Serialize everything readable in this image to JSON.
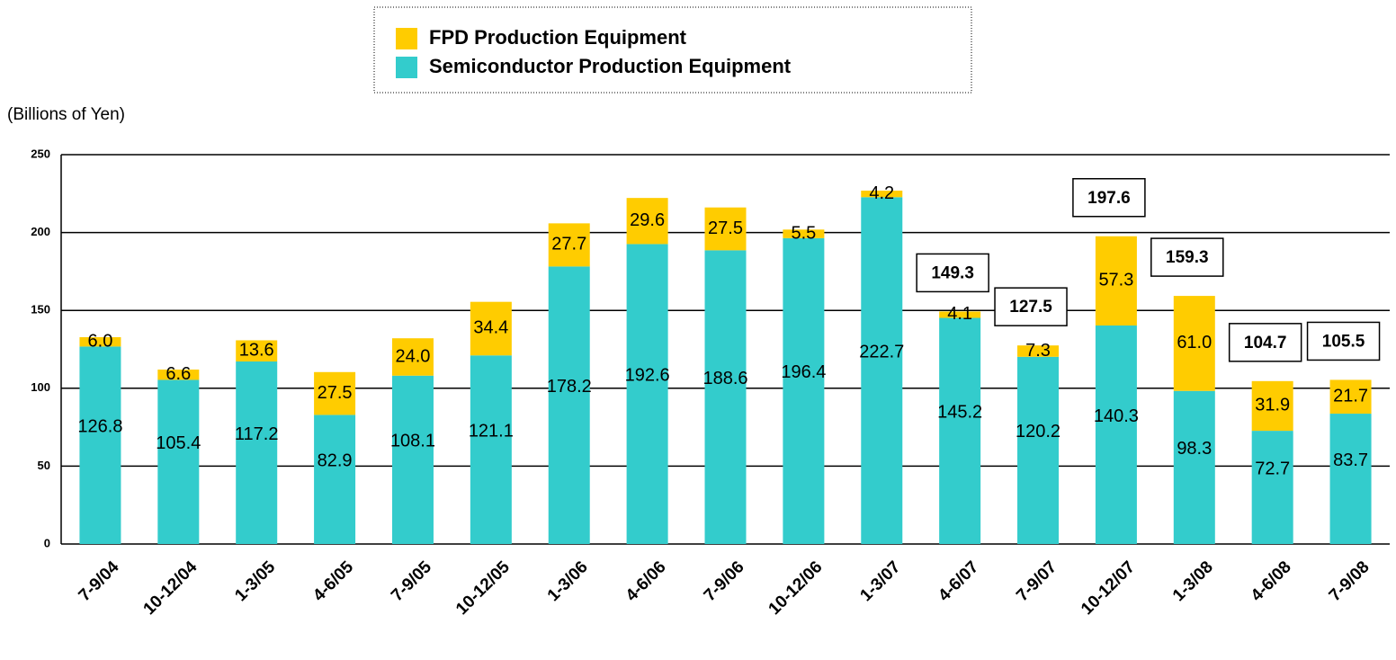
{
  "chart_data": {
    "type": "stacked_bar",
    "ylabel": "(Billions of Yen)",
    "categories": [
      "7-9/04",
      "10-12/04",
      "1-3/05",
      "4-6/05",
      "7-9/05",
      "10-12/05",
      "1-3/06",
      "4-6/06",
      "7-9/06",
      "10-12/06",
      "1-3/07",
      "4-6/07",
      "7-9/07",
      "10-12/07",
      "1-3/08",
      "4-6/08",
      "7-9/08"
    ],
    "series": [
      {
        "name": "Semiconductor Production Equipment",
        "color": "#33cccc",
        "values": [
          126.8,
          105.4,
          117.2,
          82.9,
          108.1,
          121.1,
          178.2,
          192.6,
          188.6,
          196.4,
          222.7,
          145.2,
          120.2,
          140.3,
          98.3,
          72.7,
          83.7
        ]
      },
      {
        "name": "FPD Production Equipment",
        "color": "#ffcc00",
        "values": [
          6.0,
          6.6,
          13.6,
          27.5,
          24.0,
          34.4,
          27.7,
          29.6,
          27.5,
          5.5,
          4.2,
          4.1,
          7.3,
          57.3,
          61.0,
          31.9,
          21.7
        ],
        "value_labels": [
          "6.0",
          "6.6",
          "13.6",
          "27.5",
          "24.0",
          "34.4",
          "27.7",
          "29.6",
          "27.5",
          "5.5",
          "4.2",
          "4.1",
          "7.3",
          "57.3",
          "61.0",
          "31.9",
          "21.7"
        ]
      }
    ],
    "totals": [
      null,
      null,
      null,
      null,
      null,
      null,
      null,
      null,
      null,
      null,
      null,
      149.3,
      127.5,
      197.6,
      159.3,
      104.7,
      105.5
    ],
    "ylim": [
      0,
      250
    ],
    "yticks": [
      0,
      50,
      100,
      150,
      200,
      250
    ],
    "grid": true,
    "legend": "top"
  }
}
